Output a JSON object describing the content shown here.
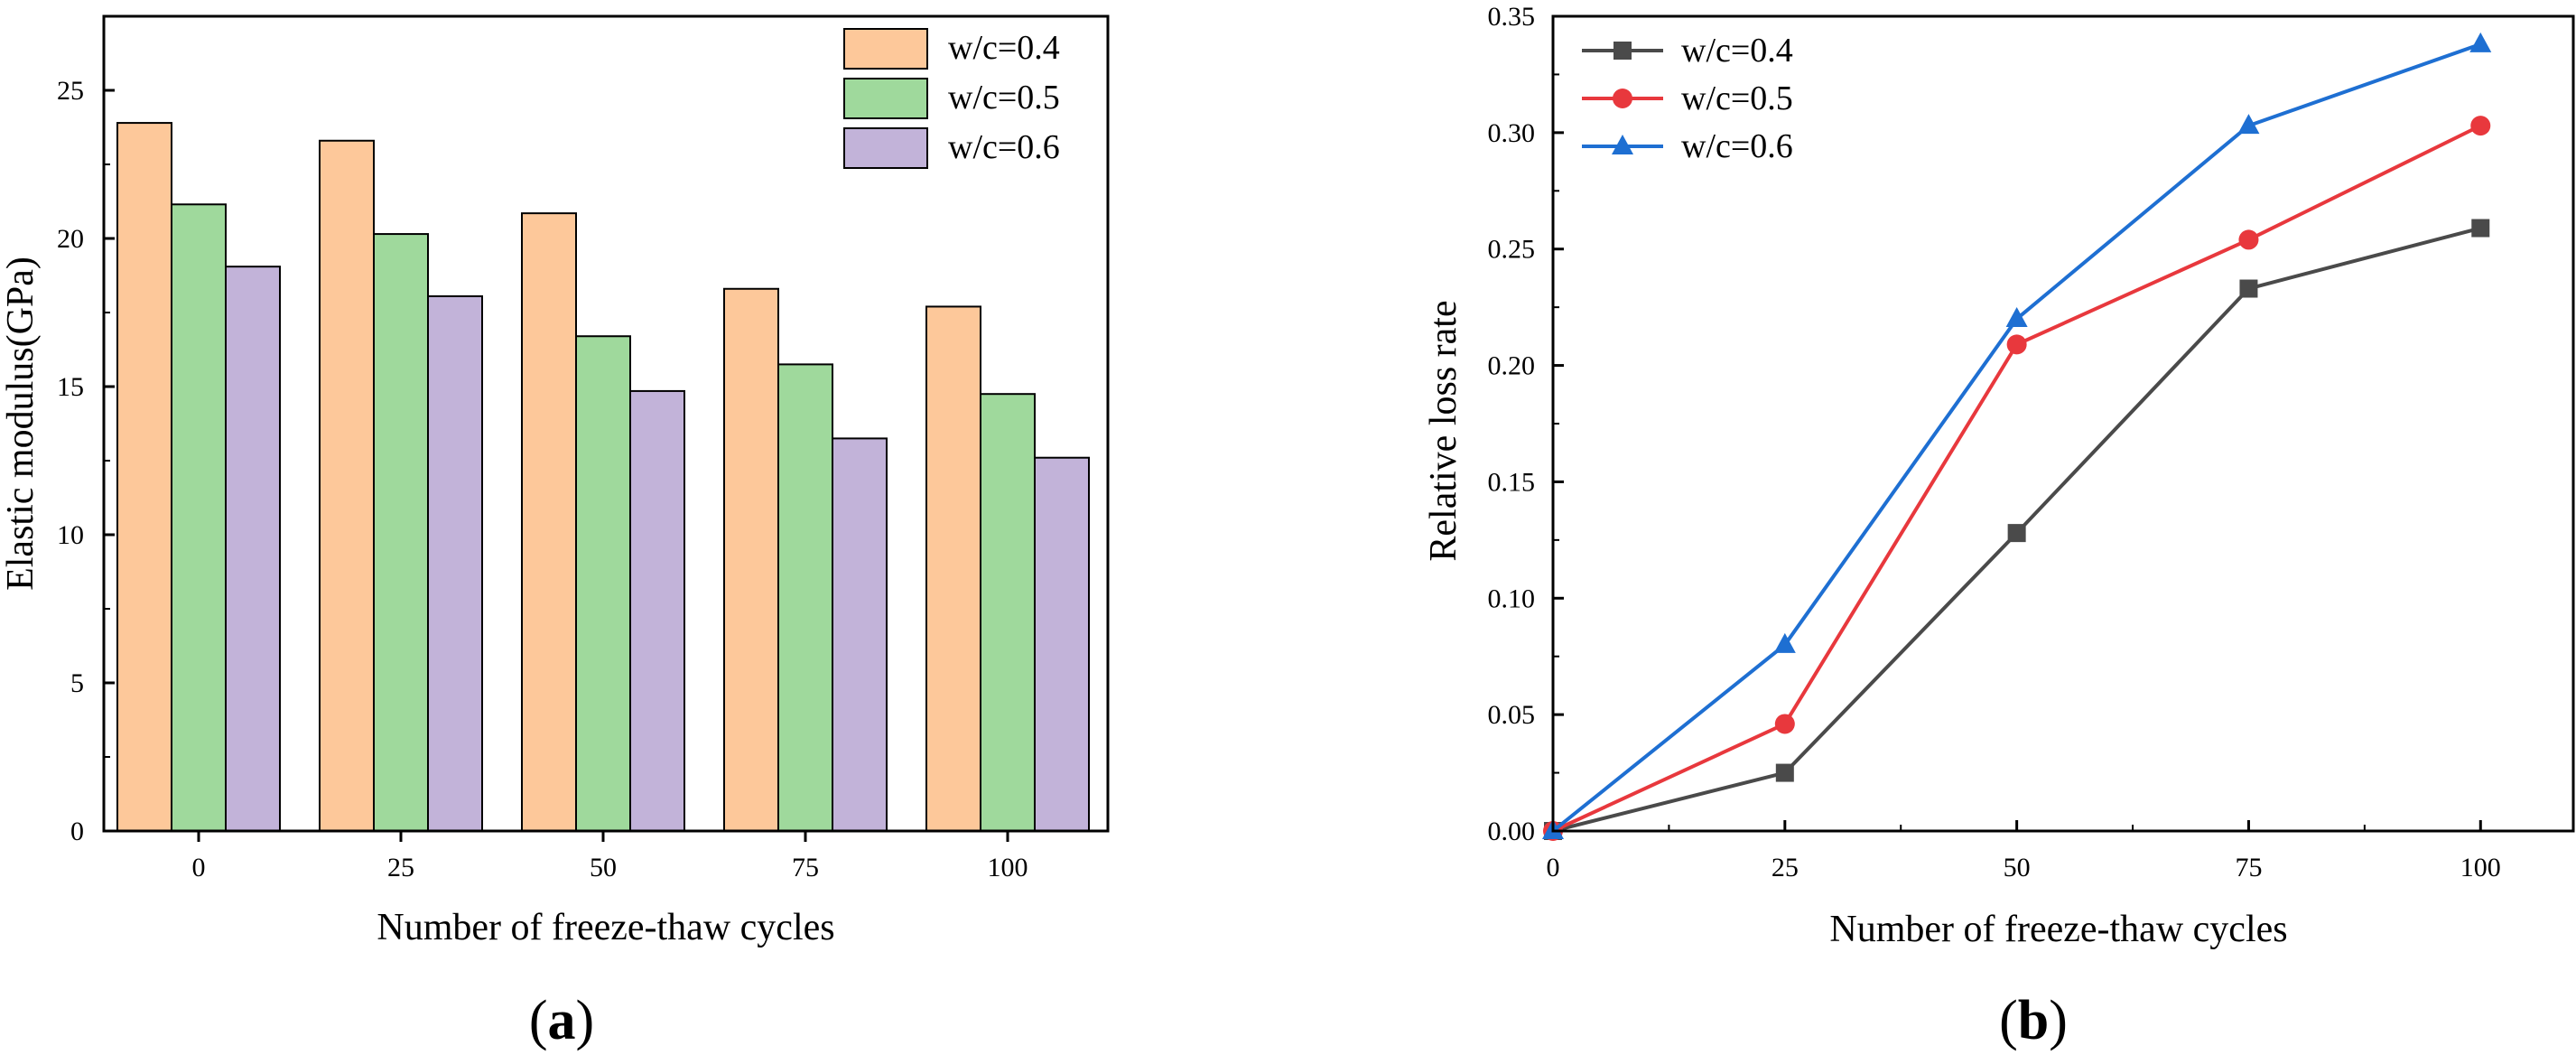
{
  "figure": {
    "panel_a_label": {
      "open": "(",
      "letter": "a",
      "close": ")"
    },
    "panel_b_label": {
      "open": "(",
      "letter": "b",
      "close": ")"
    }
  },
  "chart_data": [
    {
      "type": "bar",
      "panel": "a",
      "title": "",
      "xlabel": "Number of freeze-thaw cycles",
      "ylabel": "Elastic modulus(GPa)",
      "categories": [
        "0",
        "25",
        "50",
        "75",
        "100"
      ],
      "ylim": [
        0,
        27.5
      ],
      "yticks": [
        0,
        5,
        10,
        15,
        20,
        25
      ],
      "legend_position": "top-right",
      "series": [
        {
          "name": "w/c=0.4",
          "color": "#FDC89A",
          "values": [
            23.9,
            23.3,
            20.85,
            18.3,
            17.7
          ]
        },
        {
          "name": "w/c=0.5",
          "color": "#9FD99C",
          "values": [
            21.15,
            20.15,
            16.7,
            15.75,
            14.75
          ]
        },
        {
          "name": "w/c=0.6",
          "color": "#C2B3D9",
          "values": [
            19.05,
            18.05,
            14.85,
            13.25,
            12.6
          ]
        }
      ]
    },
    {
      "type": "line",
      "panel": "b",
      "title": "",
      "xlabel": "Number of freeze-thaw cycles",
      "ylabel": "Relative loss rate",
      "x": [
        0,
        25,
        50,
        75,
        100
      ],
      "xticks": [
        "0",
        "25",
        "50",
        "75",
        "100"
      ],
      "xlim": [
        0,
        110
      ],
      "ylim": [
        0,
        0.35
      ],
      "yticks": [
        "0.00",
        "0.05",
        "0.10",
        "0.15",
        "0.20",
        "0.25",
        "0.30",
        "0.35"
      ],
      "legend_position": "top-left",
      "series": [
        {
          "name": "w/c=0.4",
          "color": "#4A4A4A",
          "marker": "square",
          "values": [
            0,
            0.025,
            0.128,
            0.233,
            0.259
          ]
        },
        {
          "name": "w/c=0.5",
          "color": "#E8383D",
          "marker": "circle",
          "values": [
            0,
            0.046,
            0.209,
            0.254,
            0.303
          ]
        },
        {
          "name": "w/c=0.6",
          "color": "#1E6FD2",
          "marker": "triangle",
          "values": [
            0,
            0.08,
            0.22,
            0.303,
            0.338
          ]
        }
      ]
    }
  ]
}
